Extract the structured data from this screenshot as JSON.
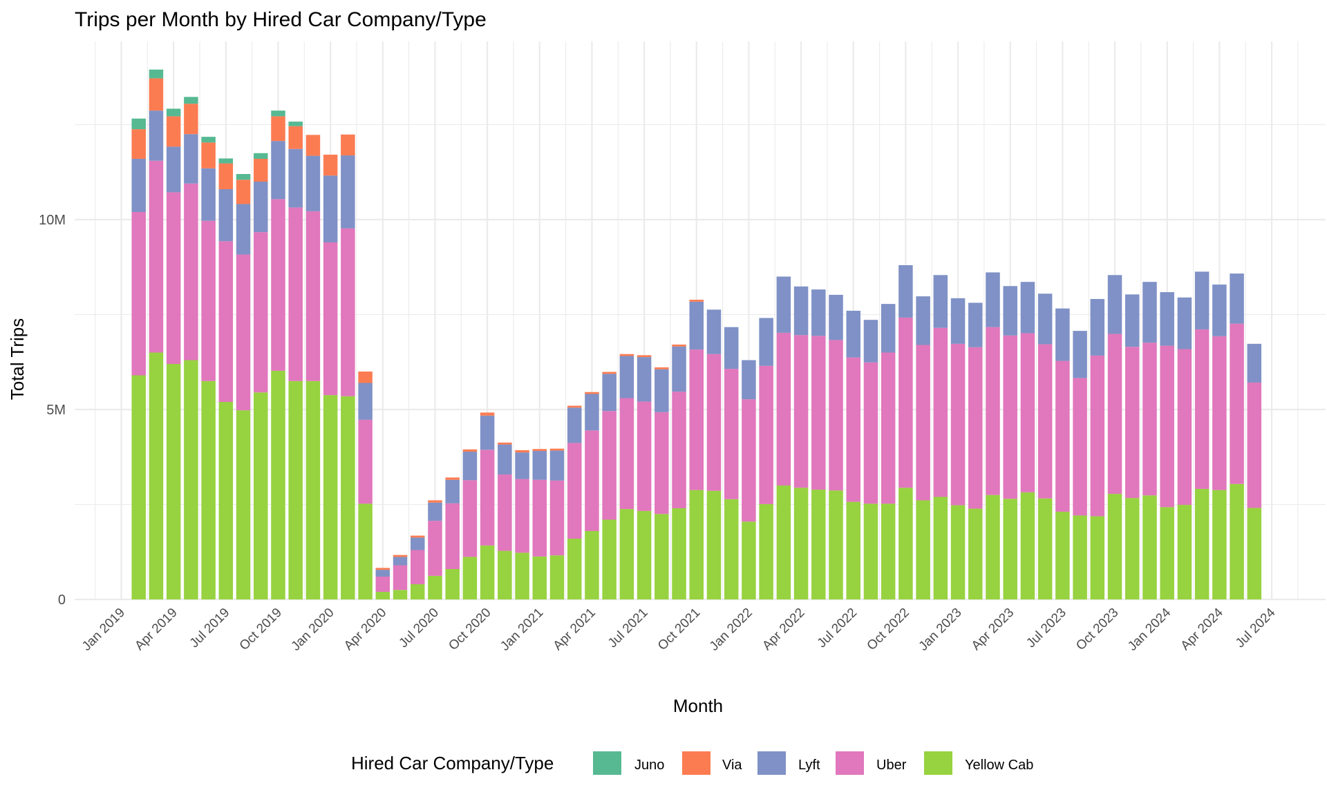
{
  "chart_data": {
    "type": "bar",
    "stacked": true,
    "title": "Trips per Month by Hired Car Company/Type",
    "xlabel": "Month",
    "ylabel": "Total Trips",
    "ylim": [
      0,
      14000000
    ],
    "y_ticks": [
      {
        "value": 0,
        "label": "0"
      },
      {
        "value": 5000000,
        "label": "5M"
      },
      {
        "value": 10000000,
        "label": "10M"
      }
    ],
    "x_range": [
      "2018-12",
      "2024-08"
    ],
    "x_ticks": [
      "2019-01",
      "2019-04",
      "2019-07",
      "2019-10",
      "2020-01",
      "2020-04",
      "2020-07",
      "2020-10",
      "2021-01",
      "2021-04",
      "2021-07",
      "2021-10",
      "2022-01",
      "2022-04",
      "2022-07",
      "2022-10",
      "2023-01",
      "2023-04",
      "2023-07",
      "2023-10",
      "2024-01",
      "2024-04",
      "2024-07"
    ],
    "x_tick_labels": [
      "Jan 2019",
      "Apr 2019",
      "Jul 2019",
      "Oct 2019",
      "Jan 2020",
      "Apr 2020",
      "Jul 2020",
      "Oct 2020",
      "Jan 2021",
      "Apr 2021",
      "Jul 2021",
      "Oct 2021",
      "Jan 2022",
      "Apr 2022",
      "Jul 2022",
      "Oct 2022",
      "Jan 2023",
      "Apr 2023",
      "Jul 2023",
      "Oct 2023",
      "Jan 2024",
      "Apr 2024",
      "Jul 2024"
    ],
    "grid": true,
    "legend": {
      "title": "Hired Car Company/Type",
      "position": "bottom"
    },
    "categories": [
      "2019-02",
      "2019-03",
      "2019-04",
      "2019-05",
      "2019-06",
      "2019-07",
      "2019-08",
      "2019-09",
      "2019-10",
      "2019-11",
      "2019-12",
      "2020-01",
      "2020-02",
      "2020-03",
      "2020-04",
      "2020-05",
      "2020-06",
      "2020-07",
      "2020-08",
      "2020-09",
      "2020-10",
      "2020-11",
      "2020-12",
      "2021-01",
      "2021-02",
      "2021-03",
      "2021-04",
      "2021-05",
      "2021-06",
      "2021-07",
      "2021-08",
      "2021-09",
      "2021-10",
      "2021-11",
      "2021-12",
      "2022-01",
      "2022-02",
      "2022-03",
      "2022-04",
      "2022-05",
      "2022-06",
      "2022-07",
      "2022-08",
      "2022-09",
      "2022-10",
      "2022-11",
      "2022-12",
      "2023-01",
      "2023-02",
      "2023-03",
      "2023-04",
      "2023-05",
      "2023-06",
      "2023-07",
      "2023-08",
      "2023-09",
      "2023-10",
      "2023-11",
      "2023-12",
      "2024-01",
      "2024-02",
      "2024-03",
      "2024-04",
      "2024-05",
      "2024-06"
    ],
    "series": [
      {
        "name": "Yellow Cab",
        "color": "#97D240",
        "values": [
          5900000,
          6500000,
          6200000,
          6300000,
          5750000,
          5200000,
          4980000,
          5450000,
          6020000,
          5750000,
          5750000,
          5380000,
          5350000,
          2520000,
          200000,
          250000,
          400000,
          620000,
          800000,
          1120000,
          1420000,
          1280000,
          1230000,
          1130000,
          1160000,
          1600000,
          1800000,
          2100000,
          2380000,
          2330000,
          2250000,
          2400000,
          2880000,
          2860000,
          2640000,
          2050000,
          2510000,
          3000000,
          2940000,
          2890000,
          2870000,
          2570000,
          2520000,
          2520000,
          2940000,
          2610000,
          2700000,
          2480000,
          2390000,
          2750000,
          2650000,
          2820000,
          2660000,
          2310000,
          2210000,
          2190000,
          2780000,
          2670000,
          2740000,
          2430000,
          2490000,
          2910000,
          2880000,
          3040000,
          2410000
        ]
      },
      {
        "name": "Uber",
        "color": "#E177BC",
        "values": [
          4300000,
          5050000,
          4520000,
          4650000,
          4220000,
          4230000,
          4100000,
          4220000,
          4520000,
          4570000,
          4470000,
          4020000,
          4420000,
          2210000,
          400000,
          650000,
          900000,
          1450000,
          1730000,
          2020000,
          2520000,
          2010000,
          1940000,
          2020000,
          1970000,
          2520000,
          2650000,
          2860000,
          2920000,
          2880000,
          2680000,
          3070000,
          3700000,
          3600000,
          3430000,
          3220000,
          3640000,
          4020000,
          4020000,
          4050000,
          3960000,
          3800000,
          3720000,
          3980000,
          4480000,
          4090000,
          4450000,
          4250000,
          4250000,
          4420000,
          4300000,
          4190000,
          4060000,
          3970000,
          3620000,
          4230000,
          4210000,
          3980000,
          4020000,
          4250000,
          4100000,
          4200000,
          4050000,
          4220000,
          3300000
        ]
      },
      {
        "name": "Lyft",
        "color": "#7F91C6",
        "values": [
          1400000,
          1320000,
          1200000,
          1300000,
          1380000,
          1370000,
          1330000,
          1330000,
          1530000,
          1540000,
          1460000,
          1760000,
          1920000,
          970000,
          180000,
          220000,
          330000,
          480000,
          620000,
          750000,
          900000,
          790000,
          700000,
          760000,
          790000,
          930000,
          960000,
          980000,
          1110000,
          1170000,
          1130000,
          1190000,
          1260000,
          1170000,
          1100000,
          1030000,
          1260000,
          1480000,
          1280000,
          1220000,
          1190000,
          1230000,
          1120000,
          1280000,
          1380000,
          1280000,
          1390000,
          1200000,
          1170000,
          1440000,
          1300000,
          1350000,
          1330000,
          1380000,
          1240000,
          1490000,
          1550000,
          1380000,
          1600000,
          1410000,
          1360000,
          1520000,
          1360000,
          1320000,
          1020000
        ]
      },
      {
        "name": "Via",
        "color": "#FC7C52",
        "values": [
          780000,
          850000,
          800000,
          800000,
          680000,
          680000,
          640000,
          600000,
          650000,
          600000,
          550000,
          550000,
          550000,
          300000,
          50000,
          50000,
          50000,
          60000,
          60000,
          60000,
          80000,
          50000,
          60000,
          50000,
          50000,
          50000,
          50000,
          50000,
          50000,
          50000,
          50000,
          50000,
          50000,
          0,
          0,
          0,
          0,
          0,
          0,
          0,
          0,
          0,
          0,
          0,
          0,
          0,
          0,
          0,
          0,
          0,
          0,
          0,
          0,
          0,
          0,
          0,
          0,
          0,
          0,
          0,
          0,
          0,
          0,
          0,
          0
        ]
      },
      {
        "name": "Juno",
        "color": "#56B992",
        "values": [
          280000,
          230000,
          200000,
          180000,
          150000,
          130000,
          150000,
          150000,
          150000,
          120000,
          0,
          0,
          0,
          0,
          0,
          0,
          0,
          0,
          0,
          0,
          0,
          0,
          0,
          0,
          0,
          0,
          0,
          0,
          0,
          0,
          0,
          0,
          0,
          0,
          0,
          0,
          0,
          0,
          0,
          0,
          0,
          0,
          0,
          0,
          0,
          0,
          0,
          0,
          0,
          0,
          0,
          0,
          0,
          0,
          0,
          0,
          0,
          0,
          0,
          0,
          0,
          0,
          0,
          0,
          0
        ]
      }
    ],
    "legend_order": [
      "Juno",
      "Via",
      "Lyft",
      "Uber",
      "Yellow Cab"
    ]
  }
}
